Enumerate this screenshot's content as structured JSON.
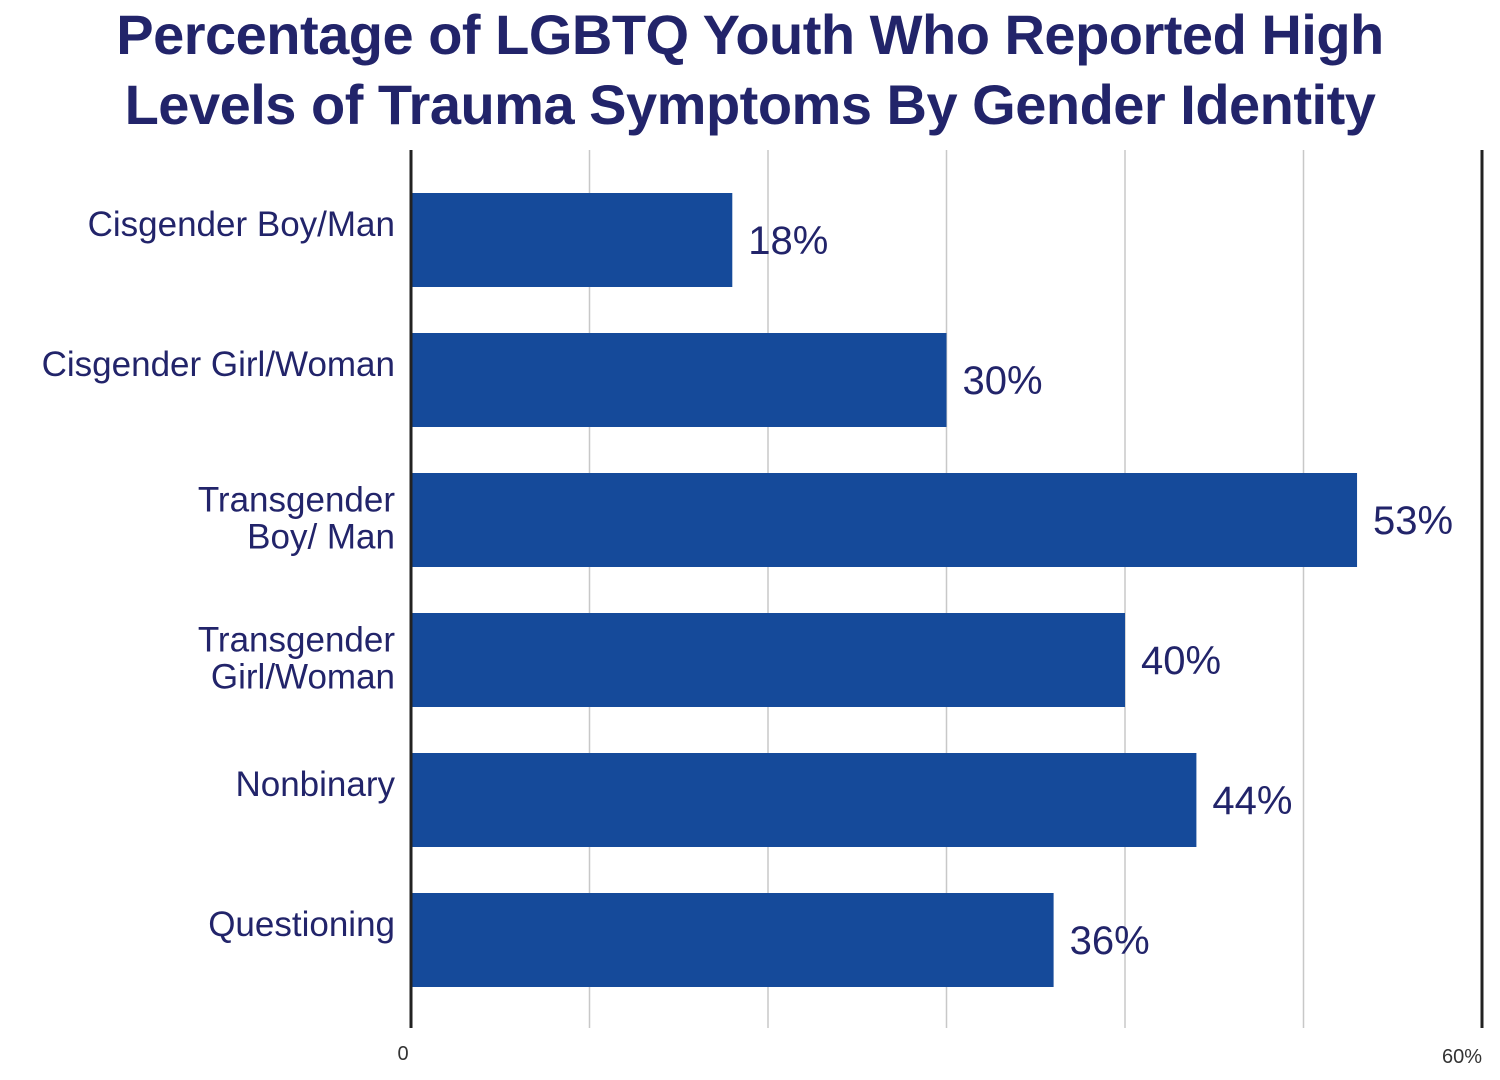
{
  "chart_data": {
    "type": "bar",
    "orientation": "horizontal",
    "title": [
      "Percentage of LGBTQ Youth Who Reported High",
      "Levels of Trauma Symptoms By Gender Identity"
    ],
    "categories": [
      [
        "Cisgender Boy/Man"
      ],
      [
        "Cisgender Girl/Woman"
      ],
      [
        "Transgender",
        "Boy/ Man"
      ],
      [
        "Transgender",
        "Girl/Woman"
      ],
      [
        "Nonbinary"
      ],
      [
        "Questioning"
      ]
    ],
    "values": [
      18,
      30,
      53,
      40,
      44,
      36
    ],
    "data_labels": [
      "18%",
      "30%",
      "53%",
      "40%",
      "44%",
      "36%"
    ],
    "xlim": [
      0,
      60
    ],
    "x_tick_labels": [
      "0",
      "60%"
    ],
    "gridlines_every": 10,
    "grid": true,
    "bar_color": "#154a9a",
    "text_color": "#22246a"
  }
}
